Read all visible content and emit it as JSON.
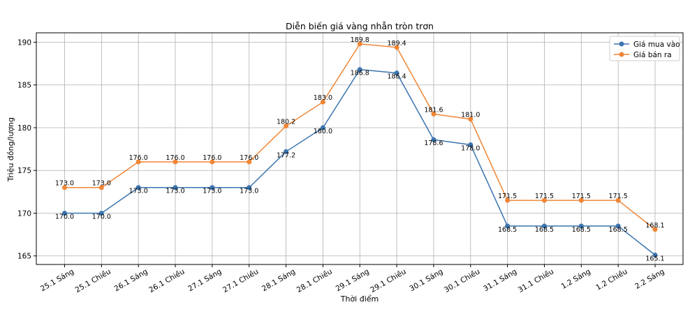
{
  "chart_data": {
    "type": "line",
    "title": "Diễn biến giá vàng nhẫn tròn trơn",
    "xlabel": "Thời điểm",
    "ylabel": "Triệu đồng/lượng",
    "categories": [
      "25.1 Sáng",
      "25.1 Chiều",
      "26.1 Sáng",
      "26.1 Chiều",
      "27.1 Sáng",
      "27.1 Chiều",
      "28.1 Sáng",
      "28.1 Chiều",
      "29.1 Sáng",
      "29.1 Chiều",
      "30.1 Sáng",
      "30.1 Chiều",
      "31.1 Sáng",
      "31.1 Chiều",
      "1.2 Sáng",
      "1.2 Chiều",
      "2.2 Sáng"
    ],
    "series": [
      {
        "name": "Giá mua vào",
        "color": "#3b75af",
        "values": [
          170.0,
          170.0,
          173.0,
          173.0,
          173.0,
          173.0,
          177.2,
          180.0,
          186.8,
          186.4,
          178.6,
          178.0,
          168.5,
          168.5,
          168.5,
          168.5,
          165.1
        ],
        "labels": [
          "170.0",
          "170.0",
          "173.0",
          "173.0",
          "173.0",
          "173.0",
          "177.2",
          "180.0",
          "186.8",
          "186.4",
          "178.6",
          "178.0",
          "168.5",
          "168.5",
          "168.5",
          "168.5",
          "165.1"
        ]
      },
      {
        "name": "Giá bán ra",
        "color": "#ef8636",
        "values": [
          173.0,
          173.0,
          176.0,
          176.0,
          176.0,
          176.0,
          180.2,
          183.0,
          189.8,
          189.4,
          181.6,
          181.0,
          171.5,
          171.5,
          171.5,
          171.5,
          168.1
        ],
        "labels": [
          "173.0",
          "173.0",
          "176.0",
          "176.0",
          "176.0",
          "176.0",
          "180.2",
          "183.0",
          "189.8",
          "189.4",
          "181.6",
          "181.0",
          "171.5",
          "171.5",
          "171.5",
          "171.5",
          "168.1"
        ]
      }
    ],
    "yticks": [
      165,
      170,
      175,
      180,
      185,
      190
    ],
    "ylim": [
      164.0,
      191.1
    ],
    "grid": true,
    "legend_position": "top-right"
  }
}
